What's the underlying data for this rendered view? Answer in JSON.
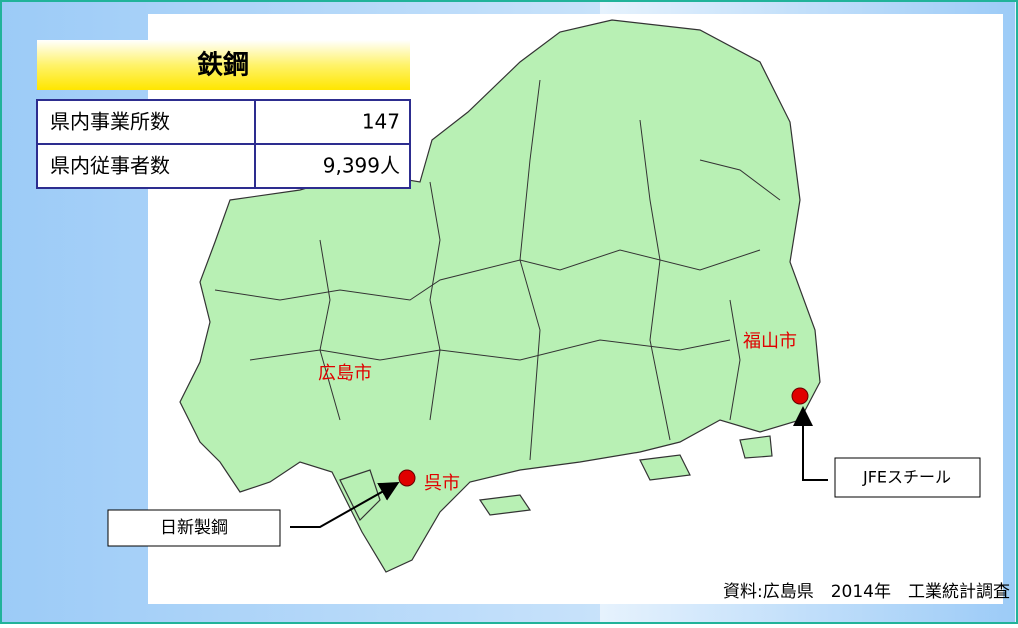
{
  "title": "鉄鋼",
  "table": {
    "rows": [
      [
        "県内事業所数",
        "147"
      ],
      [
        "県内従事者数",
        "9,399人"
      ]
    ]
  },
  "map": {
    "cities": [
      "広島市",
      "呉市",
      "福山市"
    ],
    "companies": [
      "日新製鋼",
      "JFEスチール"
    ]
  },
  "source": "資料:広島県　2014年　工業統計調査"
}
